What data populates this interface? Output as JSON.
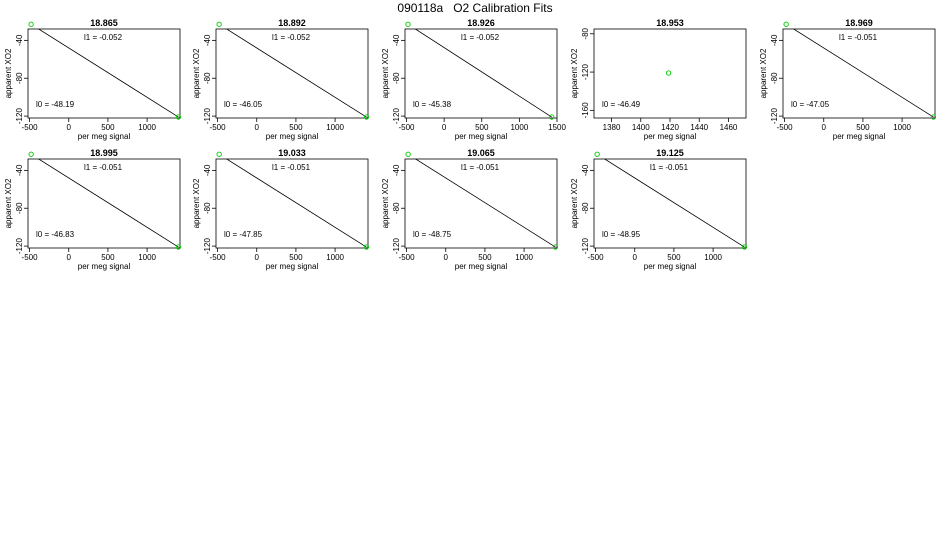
{
  "page": {
    "title": "090118a   O2 Calibration Fits"
  },
  "chart_data": [
    {
      "type": "scatter",
      "title": "18.865",
      "xlabel": "per meg signal",
      "ylabel": "apparent XO2",
      "xlim": [
        -520,
        1420
      ],
      "ylim": [
        -122,
        -28
      ],
      "xticks": [
        -500,
        0,
        500,
        1000
      ],
      "yticks": [
        -40,
        -80,
        -120
      ],
      "points": [
        {
          "x": -480,
          "y": -23
        },
        {
          "x": 1400,
          "y": -121
        }
      ],
      "fit_line": [
        {
          "x": -480,
          "y": -23
        },
        {
          "x": 1400,
          "y": -121
        }
      ],
      "annotations": {
        "l1": "l1 =  -0.052",
        "l0": "l0 =  -48.19"
      },
      "grid": false
    },
    {
      "type": "scatter",
      "title": "18.892",
      "xlabel": "per meg signal",
      "ylabel": "apparent XO2",
      "xlim": [
        -520,
        1420
      ],
      "ylim": [
        -122,
        -28
      ],
      "xticks": [
        -500,
        0,
        500,
        1000
      ],
      "yticks": [
        -40,
        -80,
        -120
      ],
      "points": [
        {
          "x": -480,
          "y": -23
        },
        {
          "x": 1400,
          "y": -121
        }
      ],
      "fit_line": [
        {
          "x": -480,
          "y": -23
        },
        {
          "x": 1400,
          "y": -121
        }
      ],
      "annotations": {
        "l1": "l1 =  -0.052",
        "l0": "l0 =  -46.05"
      },
      "grid": false
    },
    {
      "type": "scatter",
      "title": "18.926",
      "xlabel": "per meg signal",
      "ylabel": "apparent XO2",
      "xlim": [
        -520,
        1500
      ],
      "ylim": [
        -122,
        -28
      ],
      "xticks": [
        -500,
        0,
        500,
        1000,
        1500
      ],
      "yticks": [
        -40,
        -80,
        -120
      ],
      "points": [
        {
          "x": -480,
          "y": -23
        },
        {
          "x": 1430,
          "y": -121
        }
      ],
      "fit_line": [
        {
          "x": -480,
          "y": -23
        },
        {
          "x": 1430,
          "y": -121
        }
      ],
      "annotations": {
        "l1": "l1 =  -0.052",
        "l0": "l0 =  -45.38"
      },
      "grid": false
    },
    {
      "type": "scatter",
      "title": "18.953",
      "xlabel": "per meg signal",
      "ylabel": "apparent XO2",
      "xlim": [
        1368,
        1472
      ],
      "ylim": [
        -168,
        -75
      ],
      "xticks": [
        1380,
        1400,
        1420,
        1440,
        1460
      ],
      "yticks": [
        -80,
        -120,
        -160
      ],
      "points": [
        {
          "x": 1419,
          "y": -121
        }
      ],
      "fit_line": [],
      "annotations": {
        "l1": "",
        "l0": "l0 =  -46.49"
      },
      "grid": false
    },
    {
      "type": "scatter",
      "title": "18.969",
      "xlabel": "per meg signal",
      "ylabel": "apparent XO2",
      "xlim": [
        -520,
        1420
      ],
      "ylim": [
        -122,
        -28
      ],
      "xticks": [
        -500,
        0,
        500,
        1000
      ],
      "yticks": [
        -40,
        -80,
        -120
      ],
      "points": [
        {
          "x": -480,
          "y": -23
        },
        {
          "x": 1400,
          "y": -121
        }
      ],
      "fit_line": [
        {
          "x": -480,
          "y": -23
        },
        {
          "x": 1400,
          "y": -121
        }
      ],
      "annotations": {
        "l1": "l1 =  -0.051",
        "l0": "l0 =  -47.05"
      },
      "grid": false
    },
    {
      "type": "scatter",
      "title": "18.995",
      "xlabel": "per meg signal",
      "ylabel": "apparent XO2",
      "xlim": [
        -520,
        1420
      ],
      "ylim": [
        -122,
        -28
      ],
      "xticks": [
        -500,
        0,
        500,
        1000
      ],
      "yticks": [
        -40,
        -80,
        -120
      ],
      "points": [
        {
          "x": -480,
          "y": -23
        },
        {
          "x": 1400,
          "y": -121
        }
      ],
      "fit_line": [
        {
          "x": -480,
          "y": -23
        },
        {
          "x": 1400,
          "y": -121
        }
      ],
      "annotations": {
        "l1": "l1 =  -0.051",
        "l0": "l0 =  -46.83"
      },
      "grid": false
    },
    {
      "type": "scatter",
      "title": "19.033",
      "xlabel": "per meg signal",
      "ylabel": "apparent XO2",
      "xlim": [
        -520,
        1420
      ],
      "ylim": [
        -122,
        -28
      ],
      "xticks": [
        -500,
        0,
        500,
        1000
      ],
      "yticks": [
        -40,
        -80,
        -120
      ],
      "points": [
        {
          "x": -480,
          "y": -23
        },
        {
          "x": 1400,
          "y": -121
        }
      ],
      "fit_line": [
        {
          "x": -480,
          "y": -23
        },
        {
          "x": 1400,
          "y": -121
        }
      ],
      "annotations": {
        "l1": "l1 =  -0.051",
        "l0": "l0 =  -47.85"
      },
      "grid": false
    },
    {
      "type": "scatter",
      "title": "19.065",
      "xlabel": "per meg signal",
      "ylabel": "apparent XO2",
      "xlim": [
        -520,
        1420
      ],
      "ylim": [
        -122,
        -28
      ],
      "xticks": [
        -500,
        0,
        500,
        1000
      ],
      "yticks": [
        -40,
        -80,
        -120
      ],
      "points": [
        {
          "x": -480,
          "y": -23
        },
        {
          "x": 1400,
          "y": -121
        }
      ],
      "fit_line": [
        {
          "x": -480,
          "y": -23
        },
        {
          "x": 1400,
          "y": -121
        }
      ],
      "annotations": {
        "l1": "l1 =  -0.051",
        "l0": "l0 =  -48.75"
      },
      "grid": false
    },
    {
      "type": "scatter",
      "title": "19.125",
      "xlabel": "per meg signal",
      "ylabel": "apparent XO2",
      "xlim": [
        -520,
        1420
      ],
      "ylim": [
        -122,
        -28
      ],
      "xticks": [
        -500,
        0,
        500,
        1000
      ],
      "yticks": [
        -40,
        -80,
        -120
      ],
      "points": [
        {
          "x": -480,
          "y": -23
        },
        {
          "x": 1400,
          "y": -121
        }
      ],
      "fit_line": [
        {
          "x": -480,
          "y": -23
        },
        {
          "x": 1400,
          "y": -121
        }
      ],
      "annotations": {
        "l1": "l1 =  -0.051",
        "l0": "l0 =  -48.95"
      },
      "grid": false
    }
  ],
  "colors": {
    "point": "#00cc00",
    "line": "#000000",
    "axis": "#000000"
  }
}
